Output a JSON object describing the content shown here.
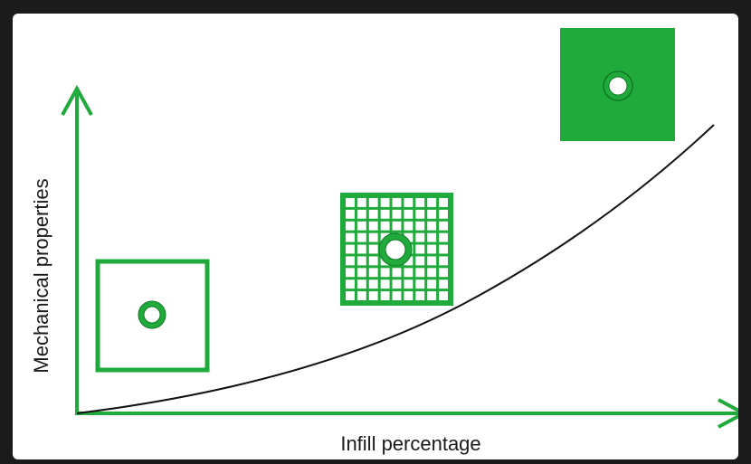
{
  "diagram": {
    "x_axis_label": "Infill percentage",
    "y_axis_label": "Mechanical properties",
    "colors": {
      "accent": "#1faa3b",
      "accent_dark": "#0e7a22",
      "curve": "#111111",
      "background": "#ffffff"
    },
    "samples": [
      {
        "name": "low-infill",
        "infill_level": "low"
      },
      {
        "name": "medium-infill",
        "infill_level": "medium"
      },
      {
        "name": "full-infill",
        "infill_level": "full"
      }
    ]
  }
}
